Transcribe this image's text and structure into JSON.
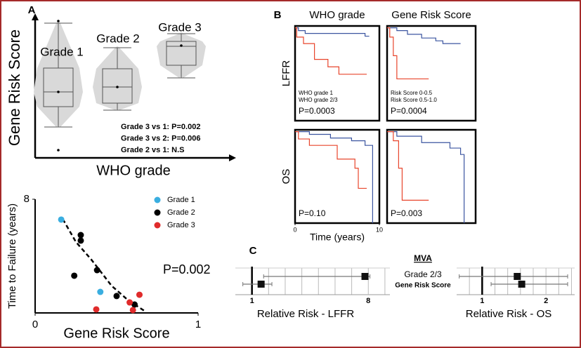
{
  "panel_labels": [
    "A",
    "B",
    "C"
  ],
  "chart_data": [
    {
      "type": "box",
      "ylabel": "Gene Risk Score",
      "xlabel": "WHO grade",
      "categories": [
        "Grade 1",
        "Grade 2",
        "Grade 3"
      ],
      "ylim": [
        0,
        1
      ],
      "color": "#d9d9d9",
      "whisker_low": [
        0.22,
        0.34,
        0.57
      ],
      "q1": [
        0.365,
        0.39,
        0.66
      ],
      "median": [
        0.47,
        0.505,
        0.795
      ],
      "q3": [
        0.64,
        0.635,
        0.83
      ],
      "whisker_high": [
        0.96,
        0.785,
        0.885
      ],
      "means": [
        0.47,
        0.505,
        0.8
      ],
      "outliers": [
        [
          0.975,
          0.055
        ],
        [],
        []
      ],
      "annotations": [
        "Grade 3 vs 1: P=0.002",
        "Grade 3 vs 2: P=0.006",
        "Grade 2 vs 1: N.S"
      ]
    },
    {
      "type": "scatter",
      "xlabel": "Gene Risk Score",
      "ylabel": "Time to Failure (years)",
      "xlim": [
        0,
        1
      ],
      "xticks": [
        0,
        1
      ],
      "ylim": [
        0,
        8
      ],
      "yticks": [
        8
      ],
      "legend": "upper right",
      "series": [
        {
          "name": "Grade 1",
          "color": "#3aaee0",
          "x": [
            0.16,
            0.4
          ],
          "values": [
            6.57,
            1.48
          ]
        },
        {
          "name": "Grade 2",
          "color": "#000000",
          "x": [
            0.28,
            0.28,
            0.24,
            0.38,
            0.5,
            0.61
          ],
          "values": [
            5.48,
            5.09,
            2.62,
            3.01,
            1.19,
            0.59
          ]
        },
        {
          "name": "Grade 3",
          "color": "#e02b2b",
          "x": [
            0.375,
            0.58,
            0.64,
            0.6
          ],
          "values": [
            0.25,
            0.74,
            1.28,
            0.2
          ]
        }
      ],
      "trendline": {
        "x": [
          0.17,
          0.25,
          0.345,
          0.47,
          0.57,
          0.67
        ],
        "values": [
          6.6,
          5.0,
          3.75,
          1.9,
          0.9,
          0.15
        ]
      },
      "annotations": [
        "P=0.002"
      ]
    },
    {
      "type": "line",
      "title": "WHO grade",
      "ylabel": "LFFR",
      "xlim": [
        0,
        10
      ],
      "ylim": [
        0,
        1.02
      ],
      "series": [
        {
          "name": "WHO grade 1",
          "color": "#3b55a0",
          "x": [
            0,
            0.4,
            0.4,
            1.2,
            1.2,
            8.3,
            8.3,
            8.8
          ],
          "values": [
            1,
            1,
            0.97,
            0.97,
            0.94,
            0.94,
            0.91,
            0.91
          ]
        },
        {
          "name": "WHO grade 2/3",
          "color": "#e8452c",
          "x": [
            0,
            0.2,
            0.2,
            1,
            1,
            2.3,
            2.3,
            3.9,
            3.9,
            5.2,
            5.2,
            8.5
          ],
          "values": [
            1,
            1,
            0.9,
            0.9,
            0.83,
            0.83,
            0.66,
            0.66,
            0.58,
            0.58,
            0.5,
            0.5
          ]
        }
      ],
      "annotations": [
        "P=0.0003"
      ]
    },
    {
      "type": "line",
      "title": "Gene Risk Score",
      "xlim": [
        0,
        10
      ],
      "ylim": [
        0,
        1.02
      ],
      "series": [
        {
          "name": "Risk Score 0-0.5",
          "color": "#3b55a0",
          "x": [
            0,
            1.1,
            1.1,
            2.3,
            2.3,
            3.9,
            3.9,
            5.5,
            5.5,
            6.3,
            6.3,
            8.3
          ],
          "values": [
            1,
            1,
            0.97,
            0.97,
            0.93,
            0.93,
            0.89,
            0.89,
            0.86,
            0.86,
            0.83,
            0.83
          ]
        },
        {
          "name": "Risk Score 0.5-1.0",
          "color": "#e8452c",
          "x": [
            0,
            0.3,
            0.3,
            0.7,
            0.7,
            1.1,
            1.1,
            4.7
          ],
          "values": [
            1,
            1,
            0.9,
            0.9,
            0.7,
            0.7,
            0.45,
            0.45
          ]
        }
      ],
      "annotations": [
        "P=0.0004"
      ]
    },
    {
      "type": "line",
      "ylabel": "OS",
      "xlabel": "Time (years)",
      "xlim": [
        0,
        10
      ],
      "xticks": [
        0,
        10
      ],
      "ylim": [
        0,
        1.02
      ],
      "series": [
        {
          "color": "#3b55a0",
          "x": [
            0,
            1.7,
            1.7,
            4.2,
            4.2,
            6.7,
            6.7,
            8.3,
            8.3,
            9.2,
            9.2
          ],
          "values": [
            1,
            1,
            0.97,
            0.97,
            0.93,
            0.93,
            0.9,
            0.9,
            0.85,
            0.85,
            0
          ]
        },
        {
          "color": "#e8452c",
          "x": [
            0,
            0.4,
            0.4,
            1.7,
            1.7,
            5,
            5,
            7.1,
            7.1,
            7.5,
            7.5,
            8.5
          ],
          "values": [
            1,
            1,
            0.92,
            0.92,
            0.85,
            0.85,
            0.7,
            0.7,
            0.6,
            0.6,
            0.38,
            0.38
          ]
        }
      ],
      "annotations": [
        "P=0.10"
      ]
    },
    {
      "type": "line",
      "xlim": [
        0,
        10
      ],
      "ylim": [
        0,
        1.02
      ],
      "series": [
        {
          "color": "#3b55a0",
          "x": [
            0,
            1.1,
            1.1,
            3.9,
            3.9,
            7.1,
            7.1,
            8.3,
            8.3,
            8.7,
            8.7
          ],
          "values": [
            1,
            1,
            0.95,
            0.95,
            0.88,
            0.88,
            0.82,
            0.82,
            0.75,
            0.75,
            0
          ]
        },
        {
          "color": "#e8452c",
          "x": [
            0,
            0.7,
            0.7,
            1.3,
            1.3,
            1.7,
            1.7,
            4.7
          ],
          "values": [
            1,
            1,
            0.9,
            0.9,
            0.6,
            0.6,
            0.25,
            0.25
          ]
        }
      ],
      "annotations": [
        "P=0.003"
      ]
    },
    {
      "type": "forest",
      "title": "MVA",
      "categories": [
        "Grade 2/3",
        "Gene Risk Score"
      ],
      "xlabel": "Relative Risk - LFFR",
      "xlim": [
        0,
        9.3
      ],
      "xticks": [
        1,
        8
      ],
      "xgrid": [
        2,
        3,
        4,
        5,
        6,
        7,
        9
      ],
      "refline": 1,
      "values": [
        7.8,
        1.55
      ],
      "ci_low": [
        1.7,
        0.45
      ],
      "ci_high": [
        8.1,
        2.2
      ]
    },
    {
      "type": "forest",
      "xlabel": "Relative Risk - OS",
      "xlim": [
        0.6,
        2.45
      ],
      "xticks": [
        1,
        2
      ],
      "xgrid": [
        0.8,
        1.2,
        1.4,
        1.6,
        1.8,
        2.2,
        2.4
      ],
      "refline": 1,
      "values": [
        1.55,
        1.62
      ],
      "ci_low": [
        0.64,
        1.14
      ],
      "ci_high": [
        2.34,
        2.34
      ]
    }
  ]
}
